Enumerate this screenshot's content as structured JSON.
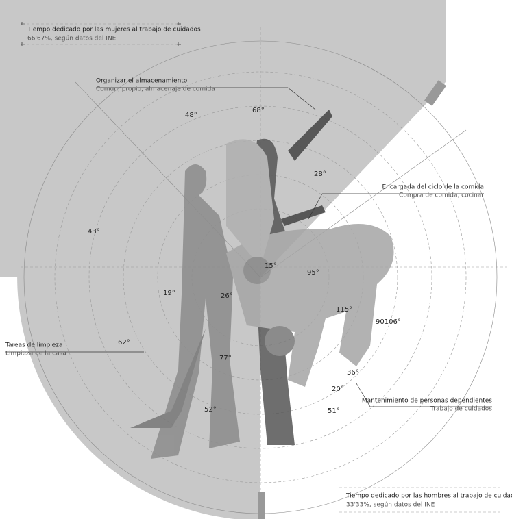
{
  "header_left": {
    "title": "Tiempo dedicado por las mujeres al trabajo de cuidados",
    "subtitle": "66'67%, según datos del INE"
  },
  "footer_right": {
    "title": "Tiempo dedicado por las hombres al trabajo de cuidados",
    "subtitle": "33'33%, según datos del INE"
  },
  "callouts": [
    {
      "title": "Organizar el almacenamiento",
      "subtitle": "Común, propio, almacenaje de comida"
    },
    {
      "title": "Encargada del ciclo de la comida",
      "subtitle": "Compra de comida, cocinar"
    },
    {
      "title": "Tareas de limpieza",
      "subtitle": "Limpieza de la casa"
    },
    {
      "title": "Mantenimiento de personas dependientes",
      "subtitle": "Trabajo de cuidados"
    }
  ],
  "angles": [
    "48°",
    "68°",
    "28°",
    "43°",
    "15°",
    "95°",
    "19°",
    "26°",
    "62°",
    "77°",
    "115°",
    "90106°",
    "36°",
    "20°",
    "51°",
    "52°"
  ]
}
